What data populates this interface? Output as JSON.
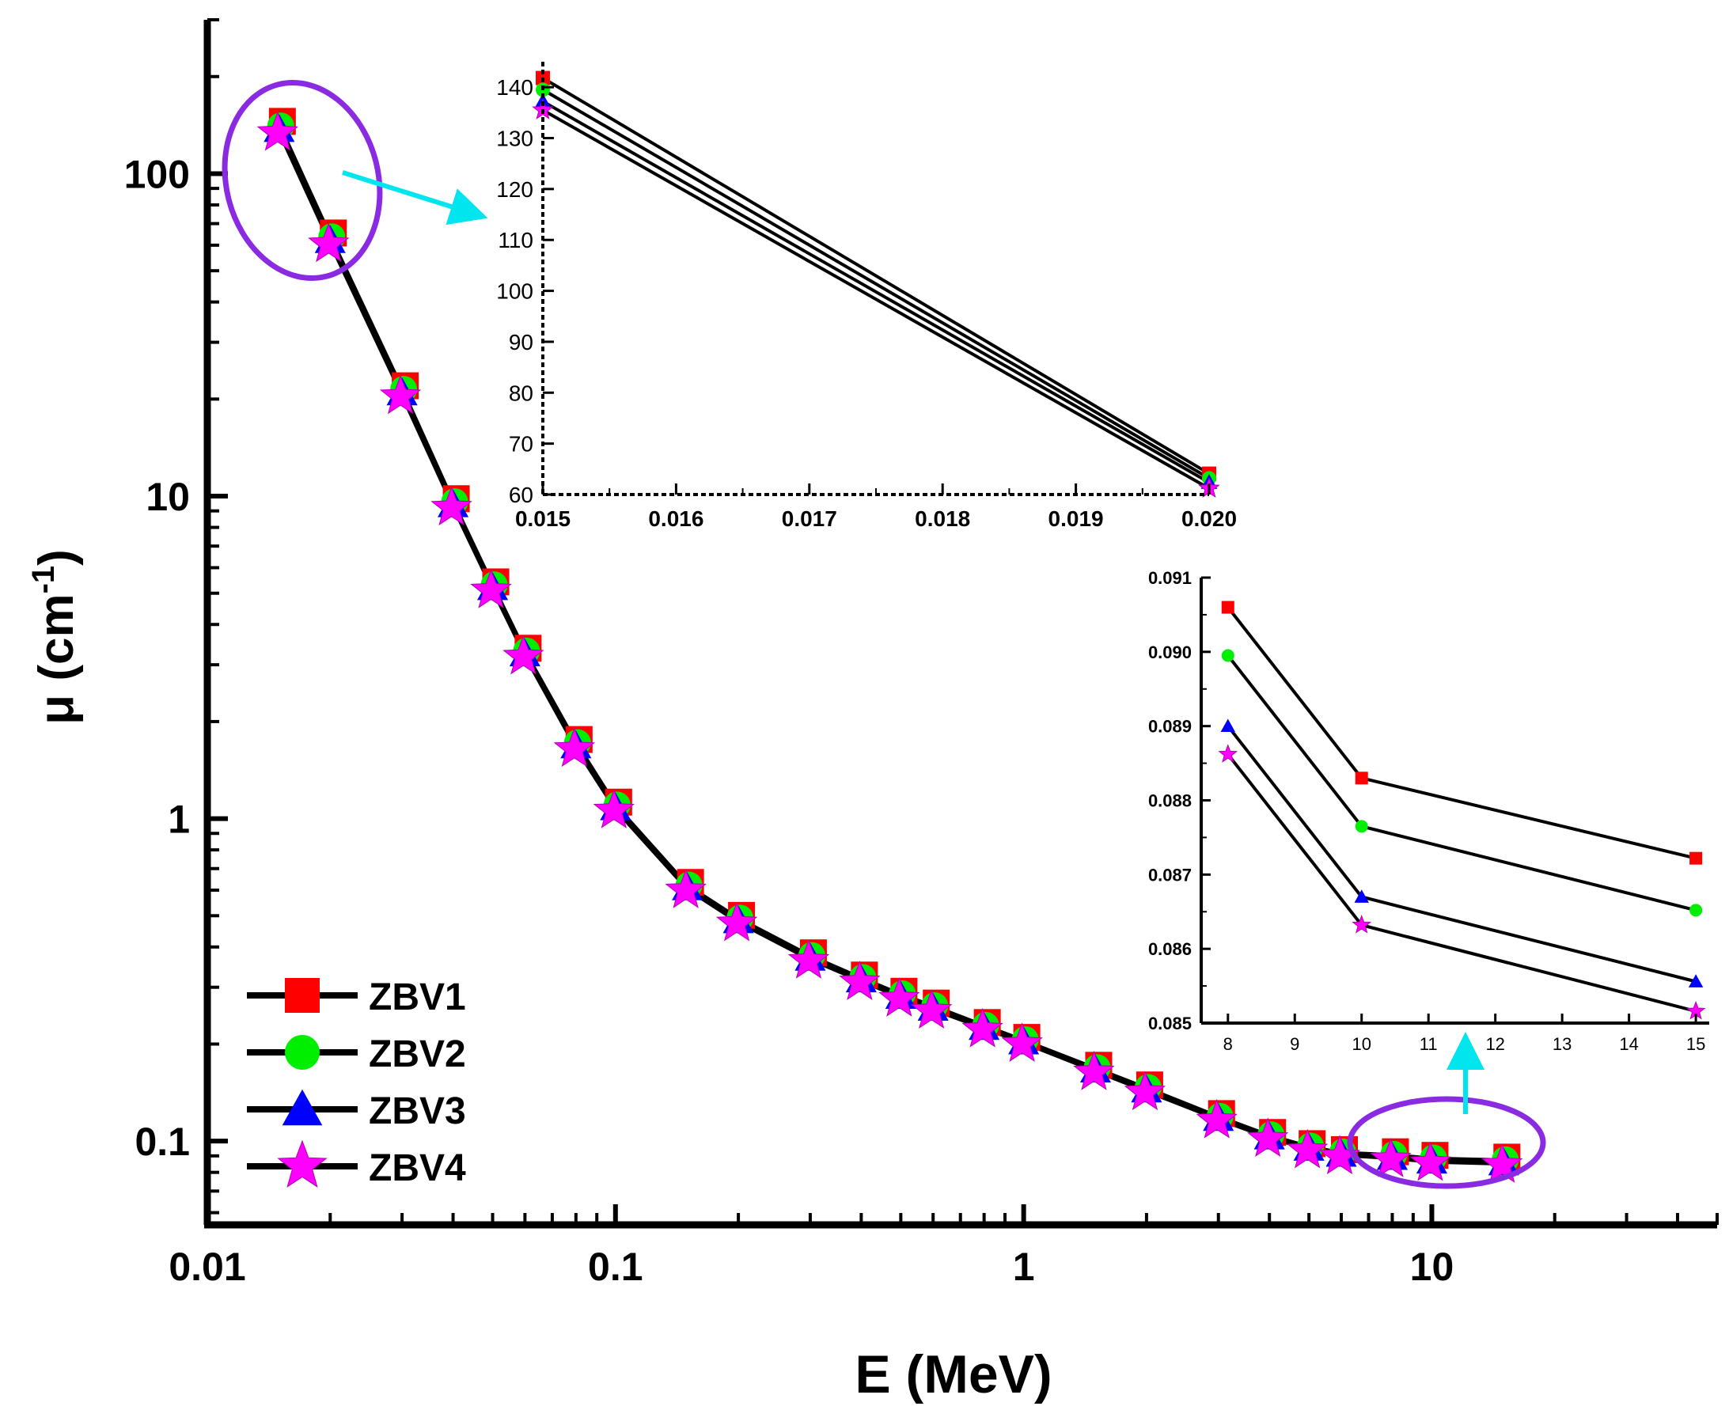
{
  "chart_data": [
    {
      "id": "main",
      "type": "line",
      "xscale": "log",
      "yscale": "log",
      "xlim": [
        0.01,
        50
      ],
      "ylim": [
        0.055,
        300
      ],
      "xlabel": "E (MeV)",
      "ylabel_main": "μ (cm",
      "ylabel_sup": "-1",
      "ylabel_close": ")",
      "xticks": [
        {
          "value": 0.01,
          "label": "0.01"
        },
        {
          "value": 0.1,
          "label": "0.1"
        },
        {
          "value": 1,
          "label": "1"
        },
        {
          "value": 10,
          "label": "10"
        }
      ],
      "yticks": [
        {
          "value": 0.1,
          "label": "0.1"
        },
        {
          "value": 1,
          "label": "1"
        },
        {
          "value": 10,
          "label": "10"
        },
        {
          "value": 100,
          "label": "100"
        }
      ],
      "x": [
        0.015,
        0.02,
        0.03,
        0.04,
        0.05,
        0.06,
        0.08,
        0.1,
        0.15,
        0.2,
        0.3,
        0.4,
        0.5,
        0.6,
        0.8,
        1,
        1.5,
        2,
        3,
        4,
        5,
        6,
        8,
        10,
        15
      ],
      "series": [
        {
          "name": "ZBV1",
          "marker": "square",
          "color": "#ff0000",
          "values": [
            142,
            64,
            21.5,
            9.6,
            5.3,
            3.3,
            1.72,
            1.1,
            0.62,
            0.49,
            0.375,
            0.32,
            0.285,
            0.262,
            0.228,
            0.205,
            0.168,
            0.146,
            0.119,
            0.104,
            0.096,
            0.092,
            0.0906,
            0.0883,
            0.0872
          ]
        },
        {
          "name": "ZBV2",
          "marker": "circle",
          "color": "#00ee00",
          "values": [
            139,
            63,
            21.2,
            9.5,
            5.25,
            3.27,
            1.7,
            1.09,
            0.615,
            0.486,
            0.372,
            0.318,
            0.283,
            0.26,
            0.226,
            0.204,
            0.167,
            0.145,
            0.118,
            0.1035,
            0.0955,
            0.0915,
            0.08995,
            0.08765,
            0.08652
          ]
        },
        {
          "name": "ZBV3",
          "marker": "triangle",
          "color": "#0000ff",
          "values": [
            137,
            62,
            20.9,
            9.4,
            5.2,
            3.24,
            1.68,
            1.08,
            0.61,
            0.482,
            0.369,
            0.316,
            0.281,
            0.258,
            0.225,
            0.203,
            0.166,
            0.144,
            0.1175,
            0.103,
            0.095,
            0.091,
            0.089,
            0.0867,
            0.08556
          ]
        },
        {
          "name": "ZBV4",
          "marker": "star",
          "color": "#ff00ff",
          "values": [
            135,
            61,
            20.6,
            9.3,
            5.15,
            3.21,
            1.66,
            1.07,
            0.605,
            0.478,
            0.366,
            0.314,
            0.279,
            0.256,
            0.224,
            0.202,
            0.165,
            0.143,
            0.117,
            0.1025,
            0.0945,
            0.0905,
            0.08862,
            0.08632,
            0.08516
          ]
        }
      ]
    },
    {
      "id": "inset1",
      "type": "line",
      "xlim": [
        0.015,
        0.02
      ],
      "ylim": [
        60,
        145
      ],
      "xticks": [
        {
          "value": 0.015,
          "label": "0.015"
        },
        {
          "value": 0.016,
          "label": "0.016"
        },
        {
          "value": 0.017,
          "label": "0.017"
        },
        {
          "value": 0.018,
          "label": "0.018"
        },
        {
          "value": 0.019,
          "label": "0.019"
        },
        {
          "value": 0.02,
          "label": "0.020"
        }
      ],
      "yticks": [
        {
          "value": 60,
          "label": "60"
        },
        {
          "value": 70,
          "label": "70"
        },
        {
          "value": 80,
          "label": "80"
        },
        {
          "value": 90,
          "label": "90"
        },
        {
          "value": 100,
          "label": "100"
        },
        {
          "value": 110,
          "label": "110"
        },
        {
          "value": 120,
          "label": "120"
        },
        {
          "value": 130,
          "label": "130"
        },
        {
          "value": 140,
          "label": "140"
        }
      ],
      "x": [
        0.015,
        0.02
      ],
      "series": [
        {
          "name": "ZBV1",
          "marker": "square",
          "color": "#ff0000",
          "values": [
            141.8,
            64.1
          ]
        },
        {
          "name": "ZBV2",
          "marker": "circle",
          "color": "#00ee00",
          "values": [
            139.5,
            63.2
          ]
        },
        {
          "name": "ZBV3",
          "marker": "triangle",
          "color": "#0000ff",
          "values": [
            137.2,
            62.4
          ]
        },
        {
          "name": "ZBV4",
          "marker": "star",
          "color": "#ff00ff",
          "values": [
            135.5,
            61.2
          ]
        }
      ]
    },
    {
      "id": "inset2",
      "type": "line",
      "xlim": [
        7.6,
        15.2
      ],
      "ylim": [
        0.085,
        0.091
      ],
      "xticks": [
        {
          "value": 8,
          "label": "8"
        },
        {
          "value": 9,
          "label": "9"
        },
        {
          "value": 10,
          "label": "10"
        },
        {
          "value": 11,
          "label": "11"
        },
        {
          "value": 12,
          "label": "12"
        },
        {
          "value": 13,
          "label": "13"
        },
        {
          "value": 14,
          "label": "14"
        },
        {
          "value": 15,
          "label": "15"
        }
      ],
      "yticks": [
        {
          "value": 0.085,
          "label": "0.085"
        },
        {
          "value": 0.086,
          "label": "0.086"
        },
        {
          "value": 0.087,
          "label": "0.087"
        },
        {
          "value": 0.088,
          "label": "0.088"
        },
        {
          "value": 0.089,
          "label": "0.089"
        },
        {
          "value": 0.09,
          "label": "0.090"
        },
        {
          "value": 0.091,
          "label": "0.091"
        }
      ],
      "x": [
        8,
        10,
        15
      ],
      "series": [
        {
          "name": "ZBV1",
          "marker": "square",
          "color": "#ff0000",
          "values": [
            0.0906,
            0.0883,
            0.08722
          ]
        },
        {
          "name": "ZBV2",
          "marker": "circle",
          "color": "#00ee00",
          "values": [
            0.08995,
            0.08765,
            0.08652
          ]
        },
        {
          "name": "ZBV3",
          "marker": "triangle",
          "color": "#0000ff",
          "values": [
            0.089,
            0.0867,
            0.08556
          ]
        },
        {
          "name": "ZBV4",
          "marker": "star",
          "color": "#ff00ff",
          "values": [
            0.08862,
            0.08632,
            0.08516
          ]
        }
      ]
    }
  ],
  "legend": {
    "placement": "bottom-left",
    "items": [
      {
        "label": "ZBV1",
        "marker": "square",
        "color": "#ff0000"
      },
      {
        "label": "ZBV2",
        "marker": "circle",
        "color": "#00ee00"
      },
      {
        "label": "ZBV3",
        "marker": "triangle",
        "color": "#0000ff"
      },
      {
        "label": "ZBV4",
        "marker": "star",
        "color": "#ff00ff"
      }
    ]
  },
  "colors": {
    "highlight_ellipse": "#8a2be2",
    "callout_arrow": "#00e5ee",
    "axes": "#000000"
  }
}
